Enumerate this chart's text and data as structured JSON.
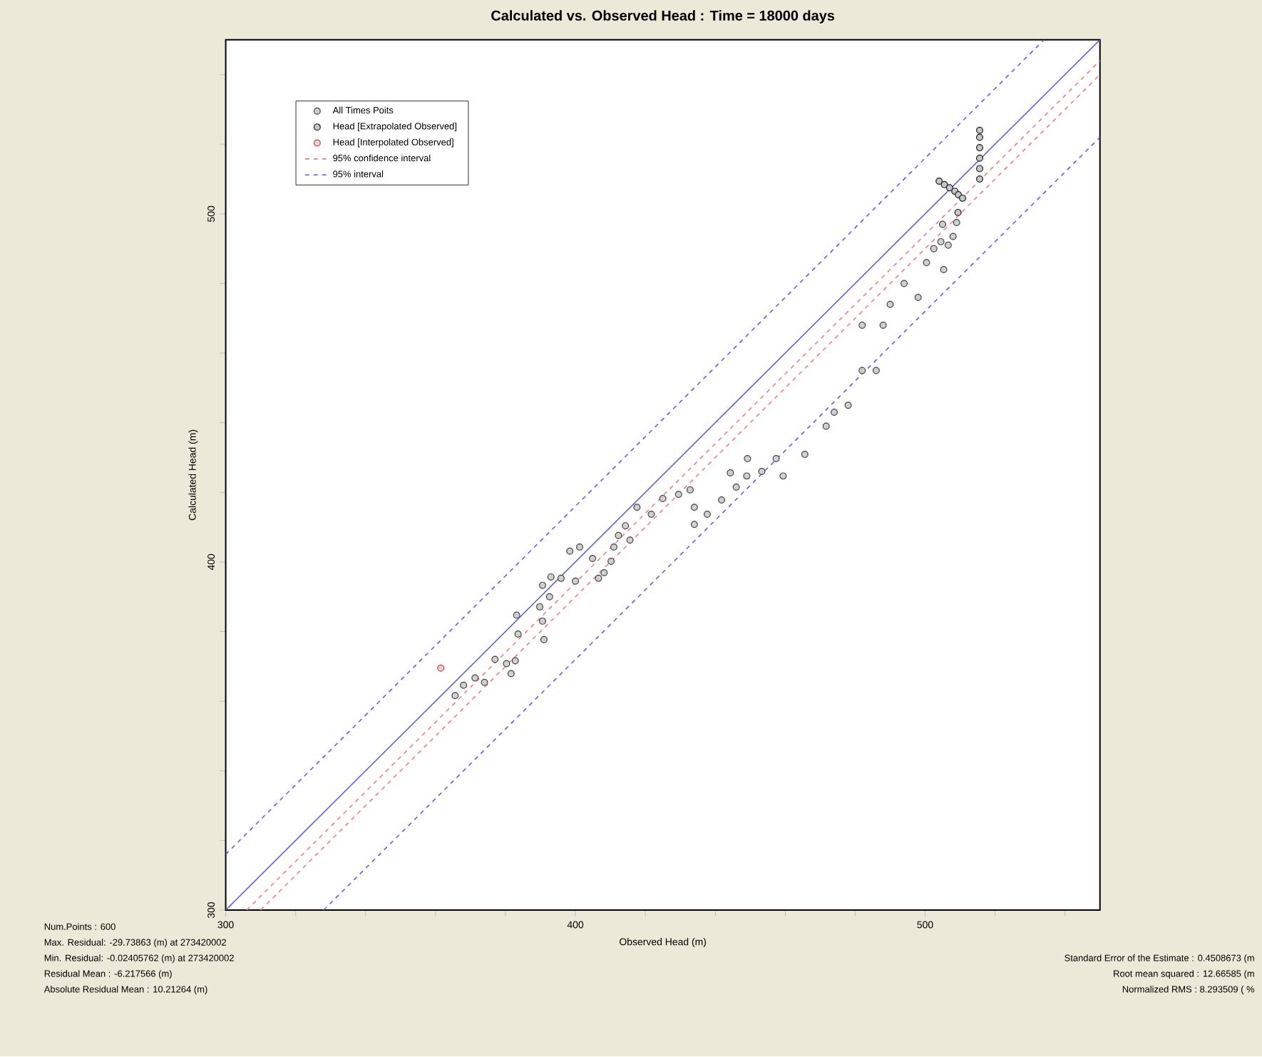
{
  "chart_data": {
    "type": "scatter",
    "title": "Calculated vs. Observed Head : Time = 18000 days",
    "xlabel": "Observed Head (m)",
    "ylabel": "Calculated Head (m)",
    "xlim": [
      300,
      550
    ],
    "ylim": [
      300,
      550
    ],
    "xticks": [
      300,
      {
        "value": 320,
        "label": null
      },
      {
        "value": 340,
        "label": null
      },
      {
        "value": 360,
        "label": null
      },
      {
        "value": 380,
        "label": null
      },
      400,
      {
        "value": 420,
        "label": null
      },
      {
        "value": 440,
        "label": null
      },
      {
        "value": 460,
        "label": null
      },
      {
        "value": 480,
        "label": null
      },
      500,
      {
        "value": 520,
        "label": null
      },
      {
        "value": 540,
        "label": null
      }
    ],
    "yticks": [
      300,
      {
        "value": 320,
        "label": null
      },
      {
        "value": 340,
        "label": null
      },
      {
        "value": 360,
        "label": null
      },
      {
        "value": 380,
        "label": null
      },
      400,
      {
        "value": 420,
        "label": null
      },
      {
        "value": 440,
        "label": null
      },
      {
        "value": 460,
        "label": null
      },
      {
        "value": 480,
        "label": null
      },
      500,
      {
        "value": 520,
        "label": null
      },
      {
        "value": 540,
        "label": null
      }
    ],
    "grid": false,
    "legend": "top left",
    "series": [
      {
        "name": "All Times Poits",
        "type": "scatter",
        "marker": "circle",
        "color": "#404040",
        "x": [
          365.6,
          368,
          371.3,
          374,
          377,
          380.3,
          381.6,
          382.8,
          383.6,
          383.2,
          389.8,
          391,
          390.6,
          392.6,
          390.6,
          393,
          395.9,
          400,
          398.4,
          401.2,
          404.9,
          406.6,
          408.2,
          410.2,
          411,
          412.3,
          414.3,
          415.6,
          417.6,
          421.7,
          425,
          429.5,
          432.8,
          434,
          434,
          437.7,
          441.8,
          444.3,
          446,
          449.2,
          453.3,
          457.4,
          465.6,
          474,
          482,
          488,
          494,
          500.4,
          504.5,
          505.3,
          498,
          486,
          478,
          471.7,
          459.4,
          449,
          482,
          490,
          505,
          509,
          508,
          502.5,
          506.6
        ],
        "values": [
          361.6,
          364.6,
          366.7,
          365.4,
          372,
          370.8,
          367.9,
          371.6,
          379.3,
          384.7,
          387.1,
          377.7,
          383,
          390,
          393.3,
          395.7,
          395.3,
          394.5,
          403.1,
          404.3,
          401,
          395.3,
          396.9,
          400.2,
          404.3,
          407.6,
          410.4,
          406.3,
          415.7,
          413.7,
          418.2,
          419.4,
          420.7,
          415.7,
          410.8,
          413.7,
          417.8,
          425.6,
          421.5,
          429.7,
          426,
          429.7,
          430.9,
          443,
          455,
          468,
          480,
          486,
          492,
          484,
          476,
          455,
          445,
          439,
          424.7,
          424.7,
          468,
          474,
          497,
          497.5,
          493.5,
          490,
          491
        ]
      },
      {
        "name": "Head [Extrapolated Observed]",
        "type": "scatter",
        "marker": "circle",
        "color": "#1a1a1a",
        "x": [
          504,
          505.5,
          507,
          508.5,
          509.5,
          510.7,
          509.4,
          515.6,
          515.6,
          515.6,
          515.6,
          515.6,
          515.6
        ],
        "values": [
          509.4,
          508.4,
          507.5,
          506.5,
          505.5,
          504.5,
          500.4,
          510,
          513,
          516,
          519,
          522,
          524
        ]
      },
      {
        "name": "Head [Interpolated Observed]",
        "type": "scatter",
        "marker": "circle",
        "color": "#c04848",
        "x": [
          361.5
        ],
        "values": [
          369.5
        ]
      },
      {
        "name": "95% confidence interval",
        "type": "line",
        "marker": "none",
        "line_style": "dashed",
        "color": "#f08080",
        "x": [
          306,
          550
        ],
        "values": [
          300,
          544
        ]
      },
      {
        "type": "line",
        "marker": "none",
        "line_style": "dashed",
        "color": "#f08080",
        "x": [
          310,
          550
        ],
        "values": [
          300,
          540
        ]
      },
      {
        "name": "95% interval",
        "type": "line",
        "marker": "none",
        "line_style": "dashed",
        "color": "#6060e0",
        "x": [
          300,
          534
        ],
        "values": [
          316,
          550
        ]
      },
      {
        "type": "line",
        "marker": "none",
        "line_style": "dashed",
        "color": "#6060e0",
        "x": [
          328,
          550
        ],
        "values": [
          300,
          522
        ]
      },
      {
        "type": "line",
        "marker": "none",
        "line_style": "solid",
        "color": "#6060e0",
        "x": [
          300,
          550
        ],
        "values": [
          300,
          550
        ]
      }
    ],
    "annotations": [
      "Num.Points : 600",
      "Max. Residual: -29.73863 (m) at 273420002",
      "Min. Residual: -0.02405762 (m) at 273420002",
      "Residual Mean : -6.217566 (m)",
      "Absolute Residual Mean : 10.21264 (m)",
      "Standard Error of the Estimate : 0.4508673 (m",
      "Root mean squared : 12.66585 (m",
      "Normalized RMS : 8.293509 ( %"
    ]
  }
}
